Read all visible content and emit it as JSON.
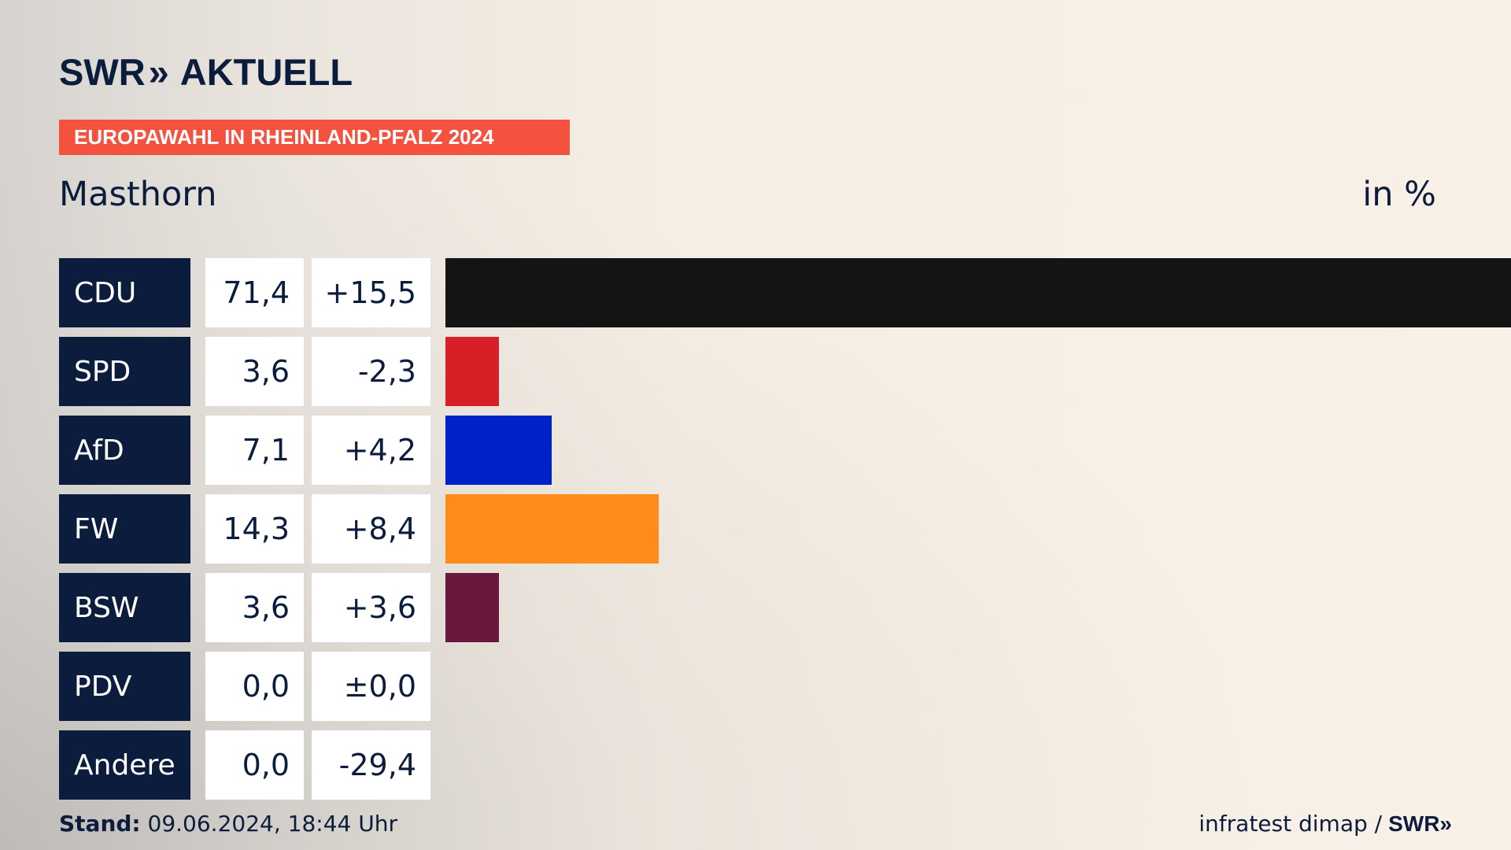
{
  "header": {
    "logo_text": "SWR",
    "logo_chevrons": "»",
    "logo_brand": "AKTUELL",
    "banner": "EUROPAWAHL IN RHEINLAND-PFALZ 2024",
    "place": "Masthorn",
    "unit": "in %"
  },
  "chart_data": {
    "type": "bar",
    "orientation": "horizontal",
    "categories": [
      "CDU",
      "SPD",
      "AfD",
      "FW",
      "BSW",
      "PDV",
      "Andere"
    ],
    "values": [
      71.4,
      3.6,
      7.1,
      14.3,
      3.6,
      0.0,
      0.0
    ],
    "value_labels": [
      "71,4",
      "3,6",
      "7,1",
      "14,3",
      "3,6",
      "0,0",
      "0,0"
    ],
    "change_labels": [
      "+15,5",
      "-2,3",
      "+4,2",
      "+8,4",
      "+3,6",
      "±0,0",
      "-29,4"
    ],
    "colors": [
      "#141414",
      "#d61f26",
      "#0021c8",
      "#ff8c1a",
      "#6a173e",
      "#888888",
      "#888888"
    ],
    "xlim": [
      0,
      71.4
    ]
  },
  "footer": {
    "stand_label": "Stand:",
    "stand_value": " 09.06.2024, 18:44 Uhr",
    "source": "infratest dimap /",
    "source_brand": "SWR»"
  }
}
